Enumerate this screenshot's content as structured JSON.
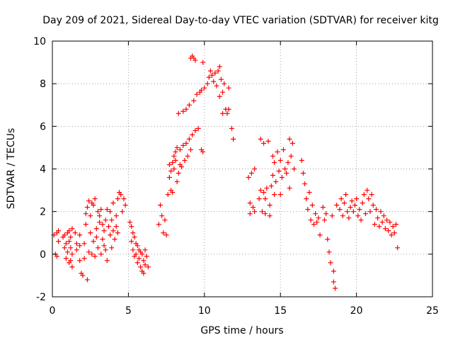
{
  "chart_data": {
    "type": "scatter",
    "title": "Day 209 of 2021, Sidereal Day-to-day VTEC variation (SDTVAR) for receiver kitg",
    "xlabel": "GPS time / hours",
    "ylabel": "SDTVAR / TECUs",
    "xlim": [
      0,
      25
    ],
    "ylim": [
      -2,
      10
    ],
    "xticks": [
      "0",
      "5",
      "10",
      "15",
      "20",
      "25"
    ],
    "yticks": [
      "-2",
      "0",
      "2",
      "4",
      "6",
      "8",
      "10"
    ],
    "grid": true,
    "marker": "+",
    "series": [
      {
        "name": "SDTVAR",
        "color": "#ff0000",
        "points": [
          [
            0.1,
            0.9
          ],
          [
            0.2,
            0.0
          ],
          [
            0.3,
            -0.1
          ],
          [
            0.3,
            1.0
          ],
          [
            0.4,
            0.6
          ],
          [
            0.4,
            1.1
          ],
          [
            0.7,
            0.8
          ],
          [
            0.8,
            0.3
          ],
          [
            0.8,
            0.9
          ],
          [
            0.9,
            -0.2
          ],
          [
            0.9,
            0.5
          ],
          [
            1.0,
            0.1
          ],
          [
            1.0,
            1.0
          ],
          [
            1.1,
            -0.4
          ],
          [
            1.1,
            0.6
          ],
          [
            1.1,
            1.1
          ],
          [
            1.2,
            -0.3
          ],
          [
            1.2,
            0.3
          ],
          [
            1.2,
            0.8
          ],
          [
            1.3,
            -0.6
          ],
          [
            1.3,
            0.0
          ],
          [
            1.3,
            1.2
          ],
          [
            1.5,
            1.0
          ],
          [
            1.6,
            0.2
          ],
          [
            1.6,
            0.5
          ],
          [
            1.8,
            0.9
          ],
          [
            1.8,
            0.4
          ],
          [
            1.8,
            -0.3
          ],
          [
            1.9,
            -0.9
          ],
          [
            2.0,
            -1.0
          ],
          [
            2.1,
            -0.2
          ],
          [
            2.1,
            0.5
          ],
          [
            2.2,
            1.4
          ],
          [
            2.2,
            1.9
          ],
          [
            2.3,
            -1.2
          ],
          [
            2.3,
            2.2
          ],
          [
            2.4,
            0.1
          ],
          [
            2.4,
            2.5
          ],
          [
            2.5,
            1.0
          ],
          [
            2.5,
            1.8
          ],
          [
            2.6,
            0.0
          ],
          [
            2.6,
            2.4
          ],
          [
            2.7,
            0.6
          ],
          [
            2.7,
            2.3
          ],
          [
            2.8,
            -0.1
          ],
          [
            2.8,
            2.6
          ],
          [
            2.9,
            1.2
          ],
          [
            2.9,
            0.8
          ],
          [
            3.0,
            0.3
          ],
          [
            3.0,
            2.0
          ],
          [
            3.1,
            1.8
          ],
          [
            3.1,
            1.5
          ],
          [
            3.2,
            0.0
          ],
          [
            3.2,
            2.1
          ],
          [
            3.3,
            1.4
          ],
          [
            3.3,
            0.7
          ],
          [
            3.4,
            0.4
          ],
          [
            3.4,
            1.1
          ],
          [
            3.5,
            1.6
          ],
          [
            3.5,
            0.2
          ],
          [
            3.6,
            -0.3
          ],
          [
            3.6,
            2.1
          ],
          [
            3.7,
            1.3
          ],
          [
            3.8,
            0.9
          ],
          [
            3.8,
            2.0
          ],
          [
            3.9,
            0.3
          ],
          [
            3.9,
            1.6
          ],
          [
            4.0,
            1.1
          ],
          [
            4.0,
            2.4
          ],
          [
            4.1,
            0.7
          ],
          [
            4.2,
            1.8
          ],
          [
            4.2,
            1.3
          ],
          [
            4.3,
            1.0
          ],
          [
            4.3,
            2.6
          ],
          [
            4.4,
            2.9
          ],
          [
            4.5,
            2.8
          ],
          [
            4.6,
            2.0
          ],
          [
            4.7,
            2.6
          ],
          [
            4.8,
            2.3
          ],
          [
            5.1,
            1.5
          ],
          [
            5.2,
            1.3
          ],
          [
            5.2,
            0.6
          ],
          [
            5.3,
            1.0
          ],
          [
            5.3,
            0.2
          ],
          [
            5.4,
            0.8
          ],
          [
            5.4,
            -0.1
          ],
          [
            5.5,
            0.5
          ],
          [
            5.5,
            0.0
          ],
          [
            5.6,
            0.4
          ],
          [
            5.6,
            -0.4
          ],
          [
            5.7,
            0.2
          ],
          [
            5.7,
            -0.2
          ],
          [
            5.8,
            0.1
          ],
          [
            5.8,
            -0.6
          ],
          [
            5.9,
            0.0
          ],
          [
            5.9,
            -0.8
          ],
          [
            6.0,
            -0.3
          ],
          [
            6.0,
            -0.9
          ],
          [
            6.1,
            0.2
          ],
          [
            6.1,
            -0.5
          ],
          [
            6.2,
            -0.1
          ],
          [
            6.3,
            -0.6
          ],
          [
            7.0,
            1.4
          ],
          [
            7.1,
            2.3
          ],
          [
            7.2,
            1.8
          ],
          [
            7.3,
            1.0
          ],
          [
            7.4,
            1.6
          ],
          [
            7.5,
            0.9
          ],
          [
            7.6,
            2.8
          ],
          [
            7.7,
            3.6
          ],
          [
            7.7,
            4.2
          ],
          [
            7.8,
            3.0
          ],
          [
            7.8,
            3.9
          ],
          [
            7.9,
            2.9
          ],
          [
            7.9,
            4.3
          ],
          [
            8.0,
            4.6
          ],
          [
            8.0,
            4.0
          ],
          [
            8.1,
            4.8
          ],
          [
            8.1,
            4.4
          ],
          [
            8.2,
            3.4
          ],
          [
            8.2,
            5.0
          ],
          [
            8.3,
            3.8
          ],
          [
            8.3,
            6.6
          ],
          [
            8.4,
            4.9
          ],
          [
            8.4,
            4.2
          ],
          [
            8.5,
            4.1
          ],
          [
            8.6,
            6.7
          ],
          [
            8.6,
            5.1
          ],
          [
            8.7,
            4.4
          ],
          [
            8.8,
            5.2
          ],
          [
            8.8,
            6.8
          ],
          [
            8.9,
            4.6
          ],
          [
            9.0,
            5.4
          ],
          [
            9.0,
            7.0
          ],
          [
            9.1,
            4.9
          ],
          [
            9.1,
            9.2
          ],
          [
            9.2,
            5.6
          ],
          [
            9.2,
            9.3
          ],
          [
            9.3,
            7.2
          ],
          [
            9.3,
            9.2
          ],
          [
            9.4,
            5.8
          ],
          [
            9.4,
            9.1
          ],
          [
            9.5,
            7.5
          ],
          [
            9.6,
            5.9
          ],
          [
            9.7,
            7.6
          ],
          [
            9.8,
            4.9
          ],
          [
            9.8,
            7.7
          ],
          [
            9.9,
            4.8
          ],
          [
            9.9,
            9.0
          ],
          [
            10.0,
            7.8
          ],
          [
            10.2,
            8.0
          ],
          [
            10.3,
            8.3
          ],
          [
            10.4,
            8.6
          ],
          [
            10.5,
            8.4
          ],
          [
            10.6,
            8.1
          ],
          [
            10.7,
            8.5
          ],
          [
            10.8,
            7.9
          ],
          [
            10.9,
            8.6
          ],
          [
            11.0,
            8.8
          ],
          [
            11.0,
            7.4
          ],
          [
            11.1,
            8.2
          ],
          [
            11.2,
            6.6
          ],
          [
            11.2,
            7.6
          ],
          [
            11.3,
            8.0
          ],
          [
            11.4,
            6.8
          ],
          [
            11.5,
            6.6
          ],
          [
            11.6,
            7.8
          ],
          [
            11.6,
            6.8
          ],
          [
            11.8,
            5.9
          ],
          [
            11.9,
            5.4
          ],
          [
            12.9,
            3.6
          ],
          [
            13.0,
            2.4
          ],
          [
            13.0,
            1.9
          ],
          [
            13.1,
            3.8
          ],
          [
            13.2,
            2.2
          ],
          [
            13.3,
            2.0
          ],
          [
            13.3,
            4.0
          ],
          [
            13.6,
            2.6
          ],
          [
            13.7,
            5.4
          ],
          [
            13.7,
            3.0
          ],
          [
            13.8,
            2.0
          ],
          [
            13.9,
            2.9
          ],
          [
            13.9,
            5.2
          ],
          [
            14.0,
            2.6
          ],
          [
            14.0,
            1.9
          ],
          [
            14.1,
            3.1
          ],
          [
            14.2,
            5.3
          ],
          [
            14.3,
            2.3
          ],
          [
            14.3,
            1.8
          ],
          [
            14.4,
            3.2
          ],
          [
            14.5,
            3.7
          ],
          [
            14.5,
            4.6
          ],
          [
            14.6,
            2.8
          ],
          [
            14.6,
            4.3
          ],
          [
            14.7,
            3.4
          ],
          [
            14.8,
            4.8
          ],
          [
            14.9,
            3.9
          ],
          [
            15.0,
            2.8
          ],
          [
            15.0,
            4.4
          ],
          [
            15.1,
            3.6
          ],
          [
            15.2,
            4.9
          ],
          [
            15.3,
            4.0
          ],
          [
            15.4,
            3.8
          ],
          [
            15.5,
            4.3
          ],
          [
            15.6,
            5.4
          ],
          [
            15.6,
            3.1
          ],
          [
            15.7,
            4.6
          ],
          [
            15.8,
            5.2
          ],
          [
            15.9,
            4.0
          ],
          [
            16.4,
            4.4
          ],
          [
            16.5,
            3.8
          ],
          [
            16.6,
            3.3
          ],
          [
            16.7,
            2.6
          ],
          [
            16.8,
            2.1
          ],
          [
            16.9,
            2.9
          ],
          [
            17.0,
            1.6
          ],
          [
            17.1,
            2.3
          ],
          [
            17.2,
            1.4
          ],
          [
            17.3,
            1.9
          ],
          [
            17.4,
            1.5
          ],
          [
            17.5,
            1.7
          ],
          [
            17.6,
            0.9
          ],
          [
            17.8,
            2.2
          ],
          [
            17.9,
            1.6
          ],
          [
            18.0,
            1.9
          ],
          [
            18.1,
            0.7
          ],
          [
            18.2,
            0.1
          ],
          [
            18.3,
            -0.4
          ],
          [
            18.4,
            1.8
          ],
          [
            18.5,
            -0.8
          ],
          [
            18.5,
            -1.3
          ],
          [
            18.6,
            -1.6
          ],
          [
            18.7,
            2.3
          ],
          [
            18.9,
            2.1
          ],
          [
            19.0,
            2.6
          ],
          [
            19.1,
            1.8
          ],
          [
            19.2,
            2.4
          ],
          [
            19.3,
            2.8
          ],
          [
            19.4,
            2.0
          ],
          [
            19.5,
            1.7
          ],
          [
            19.6,
            2.2
          ],
          [
            19.7,
            2.5
          ],
          [
            19.8,
            2.0
          ],
          [
            19.9,
            2.3
          ],
          [
            20.0,
            2.6
          ],
          [
            20.1,
            1.8
          ],
          [
            20.2,
            2.1
          ],
          [
            20.3,
            1.6
          ],
          [
            20.4,
            2.4
          ],
          [
            20.5,
            2.8
          ],
          [
            20.6,
            1.9
          ],
          [
            20.7,
            3.0
          ],
          [
            20.8,
            2.6
          ],
          [
            20.9,
            2.0
          ],
          [
            21.0,
            2.8
          ],
          [
            21.1,
            2.3
          ],
          [
            21.2,
            1.4
          ],
          [
            21.3,
            2.1
          ],
          [
            21.4,
            1.7
          ],
          [
            21.5,
            1.3
          ],
          [
            21.6,
            2.0
          ],
          [
            21.7,
            1.5
          ],
          [
            21.8,
            1.8
          ],
          [
            21.9,
            1.2
          ],
          [
            22.0,
            1.6
          ],
          [
            22.1,
            1.1
          ],
          [
            22.2,
            1.5
          ],
          [
            22.3,
            0.9
          ],
          [
            22.4,
            1.3
          ],
          [
            22.5,
            1.0
          ],
          [
            22.6,
            1.4
          ],
          [
            22.7,
            0.3
          ]
        ]
      }
    ]
  }
}
